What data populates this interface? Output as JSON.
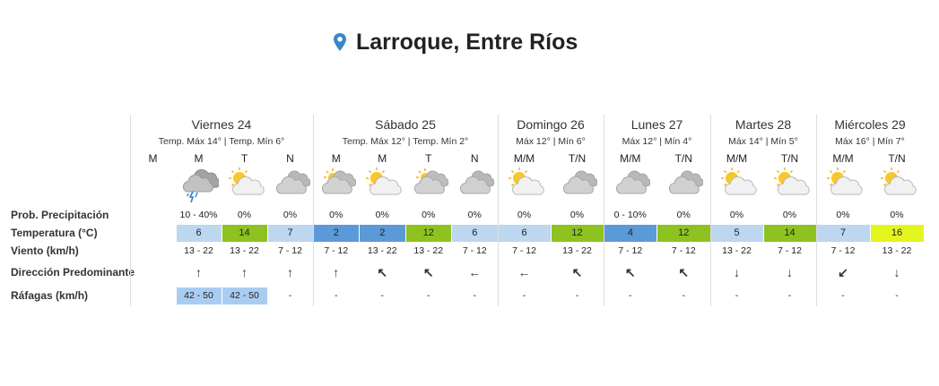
{
  "header": {
    "title": "Larroque, Entre Ríos"
  },
  "row_labels": [
    "Prob. Precipitación",
    "Temperatura (°C)",
    "Viento (km/h)",
    "Dirección Predominante",
    "Ráfagas (km/h)"
  ],
  "days": [
    {
      "name": "Viernes 24",
      "summary": "Temp. Máx 14° | Temp. Mín 6°",
      "periods": [
        {
          "label": "M"
        },
        {
          "label": "M",
          "icon": "storm",
          "precip": "10 - 40%",
          "temp": 6,
          "temp_color": "#bcd7ef",
          "wind": "13 - 22",
          "dir": "↑",
          "gusts": "42 - 50",
          "gust_color": "#a9cdf1"
        },
        {
          "label": "T",
          "icon": "partly-sunny",
          "precip": "0%",
          "temp": 14,
          "temp_color": "#8dc220",
          "wind": "13 - 22",
          "dir": "↑",
          "gusts": "42 - 50",
          "gust_color": "#a9cdf1"
        },
        {
          "label": "N",
          "icon": "cloudy",
          "precip": "0%",
          "temp": 7,
          "temp_color": "#bcd7ef",
          "wind": "7 - 12",
          "dir": "↑",
          "gusts": "-"
        }
      ]
    },
    {
      "name": "Sábado 25",
      "summary": "Temp. Máx 12° | Temp. Mín 2°",
      "periods": [
        {
          "label": "M",
          "icon": "cloudy-sun",
          "precip": "0%",
          "temp": 2,
          "temp_color": "#5b9ad8",
          "wind": "7 - 12",
          "dir": "↑",
          "gusts": "-"
        },
        {
          "label": "M",
          "icon": "partly-sunny",
          "precip": "0%",
          "temp": 2,
          "temp_color": "#5b9ad8",
          "wind": "13 - 22",
          "dir": "↖",
          "gusts": "-"
        },
        {
          "label": "T",
          "icon": "cloudy-sun",
          "precip": "0%",
          "temp": 12,
          "temp_color": "#8dc220",
          "wind": "13 - 22",
          "dir": "↖",
          "gusts": "-"
        },
        {
          "label": "N",
          "icon": "cloudy",
          "precip": "0%",
          "temp": 6,
          "temp_color": "#bcd7ef",
          "wind": "7 - 12",
          "dir": "←",
          "gusts": "-"
        }
      ]
    },
    {
      "name": "Domingo 26",
      "summary": "Máx 12° | Mín 6°",
      "periods": [
        {
          "label": "M/M",
          "icon": "partly-sunny",
          "precip": "0%",
          "temp": 6,
          "temp_color": "#bcd7ef",
          "wind": "7 - 12",
          "dir": "←",
          "gusts": "-"
        },
        {
          "label": "T/N",
          "icon": "cloudy",
          "precip": "0%",
          "temp": 12,
          "temp_color": "#8dc220",
          "wind": "13 - 22",
          "dir": "↖",
          "gusts": "-"
        }
      ]
    },
    {
      "name": "Lunes 27",
      "summary": "Máx 12° | Mín 4°",
      "periods": [
        {
          "label": "M/M",
          "icon": "cloudy",
          "precip": "0 - 10%",
          "temp": 4,
          "temp_color": "#5b9ad8",
          "wind": "7 - 12",
          "dir": "↖",
          "gusts": "-"
        },
        {
          "label": "T/N",
          "icon": "cloudy",
          "precip": "0%",
          "temp": 12,
          "temp_color": "#8dc220",
          "wind": "7 - 12",
          "dir": "↖",
          "gusts": "-"
        }
      ]
    },
    {
      "name": "Martes 28",
      "summary": "Máx 14° | Mín 5°",
      "periods": [
        {
          "label": "M/M",
          "icon": "partly-sunny",
          "precip": "0%",
          "temp": 5,
          "temp_color": "#bcd7ef",
          "wind": "13 - 22",
          "dir": "↓",
          "gusts": "-"
        },
        {
          "label": "T/N",
          "icon": "partly-sunny",
          "precip": "0%",
          "temp": 14,
          "temp_color": "#8dc220",
          "wind": "7 - 12",
          "dir": "↓",
          "gusts": "-"
        }
      ]
    },
    {
      "name": "Miércoles 29",
      "summary": "Máx 16° | Mín 7°",
      "periods": [
        {
          "label": "M/M",
          "icon": "partly-sunny",
          "precip": "0%",
          "temp": 7,
          "temp_color": "#bcd7ef",
          "wind": "7 - 12",
          "dir": "↙",
          "gusts": "-"
        },
        {
          "label": "T/N",
          "icon": "partly-sunny",
          "precip": "0%",
          "temp": 16,
          "temp_color": "#e3f51e",
          "wind": "13 - 22",
          "dir": "↓",
          "gusts": "-"
        }
      ]
    }
  ]
}
